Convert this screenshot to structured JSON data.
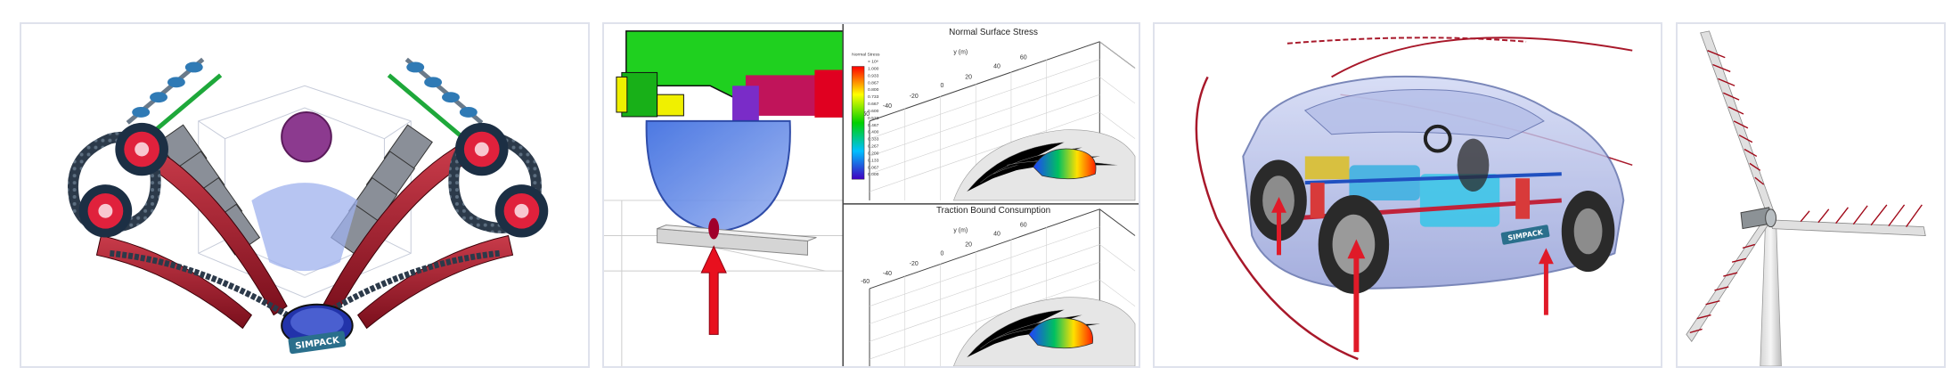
{
  "gallery": {
    "accent_color": "#b21a2a",
    "border_color": "#dfe2ec",
    "logo_text": "SIMPACK",
    "tiles": [
      {
        "name": "v-engine-timing-drive",
        "icon": "engine-model-image",
        "logo_text": "SIMPACK"
      },
      {
        "name": "wheel-rail-contact",
        "icon": "wheel-rail-image",
        "plots": [
          {
            "title": "Normal Surface Stress",
            "axis_label": "y (m)",
            "colorbar": {
              "title": "Normal Stress",
              "exponent": "× 10⁸",
              "values": [
                "1.000",
                "0.933",
                "0.867",
                "0.800",
                "0.733",
                "0.667",
                "0.600",
                "0.533",
                "0.467",
                "0.400",
                "0.333",
                "0.267",
                "0.200",
                "0.133",
                "0.067",
                "0.000"
              ]
            },
            "ticks": [
              "-60",
              "-40",
              "-20",
              "0",
              "20",
              "40",
              "60"
            ]
          },
          {
            "title": "Traction Bound Consumption",
            "axis_label": "y (m)",
            "ticks": [
              "-60",
              "-40",
              "-20",
              "0",
              "20",
              "40",
              "60"
            ]
          }
        ]
      },
      {
        "name": "full-vehicle-dynamics",
        "icon": "car-model-image",
        "logo_text": "SIMPACK"
      },
      {
        "name": "wind-turbine",
        "icon": "wind-turbine-image"
      }
    ]
  }
}
